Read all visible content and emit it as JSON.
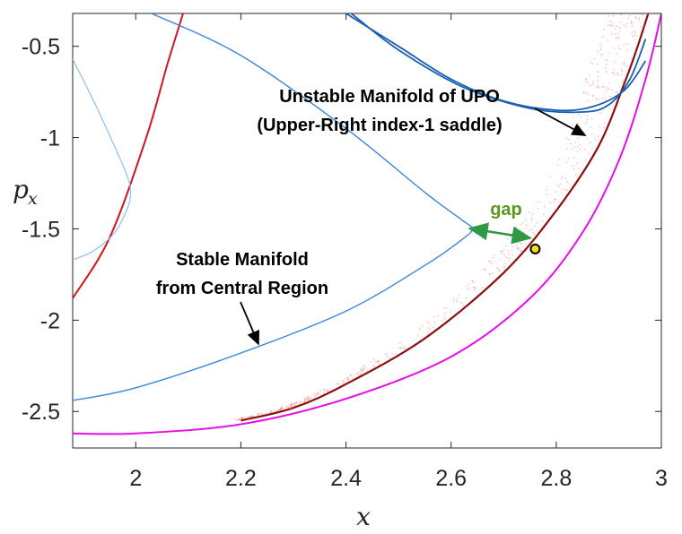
{
  "chart_data": {
    "type": "line",
    "xlabel": "x",
    "ylabel": "p_x",
    "xlim": [
      1.88,
      3.0
    ],
    "ylim": [
      -2.7,
      -0.32
    ],
    "xticks": [
      "2",
      "2.2",
      "2.4",
      "2.6",
      "2.8",
      "3"
    ],
    "yticks": [
      "-0.5",
      "-1",
      "-1.5",
      "-2",
      "-2.5"
    ],
    "grid": false,
    "colors": {
      "red": "#d4141a",
      "darkred": "#8b1010",
      "magenta": "#e60ee6",
      "blue": "#3a86d8",
      "lightblue": "#8cc0ee",
      "darkblue": "#1a5fb0",
      "green": "#2e9a47",
      "marker_fill": "#f2e11a"
    },
    "series": [
      {
        "values_x": [
          1.88,
          1.95,
          2.02,
          2.06,
          2.09
        ],
        "values_y": [
          -1.88,
          -1.55,
          -1.0,
          -0.6,
          -0.32
        ],
        "style": "red"
      },
      {
        "values_x": [
          1.88,
          1.92,
          1.96,
          1.985,
          1.99,
          1.985,
          1.96,
          1.92,
          1.88
        ],
        "values_y": [
          -0.57,
          -0.8,
          -1.05,
          -1.22,
          -1.3,
          -1.38,
          -1.52,
          -1.62,
          -1.67
        ],
        "style": "lightblue"
      },
      {
        "values_x": [
          2.03,
          2.2,
          2.4,
          2.55,
          2.62,
          2.64,
          2.62,
          2.55,
          2.4,
          2.2,
          2.0,
          1.88
        ],
        "values_y": [
          -0.32,
          -0.55,
          -0.95,
          -1.3,
          -1.45,
          -1.5,
          -1.56,
          -1.7,
          -1.95,
          -2.18,
          -2.37,
          -2.44
        ],
        "style": "blue"
      },
      {
        "values_x": [
          1.88,
          2.0,
          2.2,
          2.4,
          2.6,
          2.75,
          2.85,
          2.92,
          2.97,
          3.0
        ],
        "values_y": [
          -2.62,
          -2.62,
          -2.57,
          -2.43,
          -2.2,
          -1.88,
          -1.52,
          -1.12,
          -0.68,
          -0.32
        ],
        "style": "magenta"
      },
      {
        "values_x": [
          2.2,
          2.3,
          2.4,
          2.55,
          2.7,
          2.8,
          2.88,
          2.93,
          2.955,
          2.975
        ],
        "values_y": [
          -2.55,
          -2.48,
          -2.35,
          -2.1,
          -1.74,
          -1.4,
          -1.05,
          -0.7,
          -0.5,
          -0.32
        ],
        "style": "darkred"
      },
      {
        "values_x": [
          2.41,
          2.5,
          2.62,
          2.75,
          2.85,
          2.9,
          2.94,
          2.97
        ],
        "values_y": [
          -0.32,
          -0.52,
          -0.72,
          -0.84,
          -0.86,
          -0.82,
          -0.68,
          -0.46
        ],
        "style": "darkblue"
      },
      {
        "values_x": [
          2.4,
          2.5,
          2.6,
          2.7,
          2.8,
          2.87,
          2.93,
          2.97
        ],
        "values_y": [
          -0.32,
          -0.5,
          -0.68,
          -0.8,
          -0.85,
          -0.83,
          -0.74,
          -0.58
        ],
        "style": "darkblue"
      }
    ],
    "point": {
      "x": 2.76,
      "y": -1.61
    },
    "gap_arrow": {
      "x1": 2.64,
      "y1": -1.5,
      "x2": 2.75,
      "y2": -1.55
    },
    "annotations": {
      "unstable_line1": "Unstable Manifold of UPO",
      "unstable_line2": "(Upper-Right index-1 saddle)",
      "stable_line1": "Stable Manifold",
      "stable_line2": "from Central Region",
      "gap": "gap"
    }
  }
}
